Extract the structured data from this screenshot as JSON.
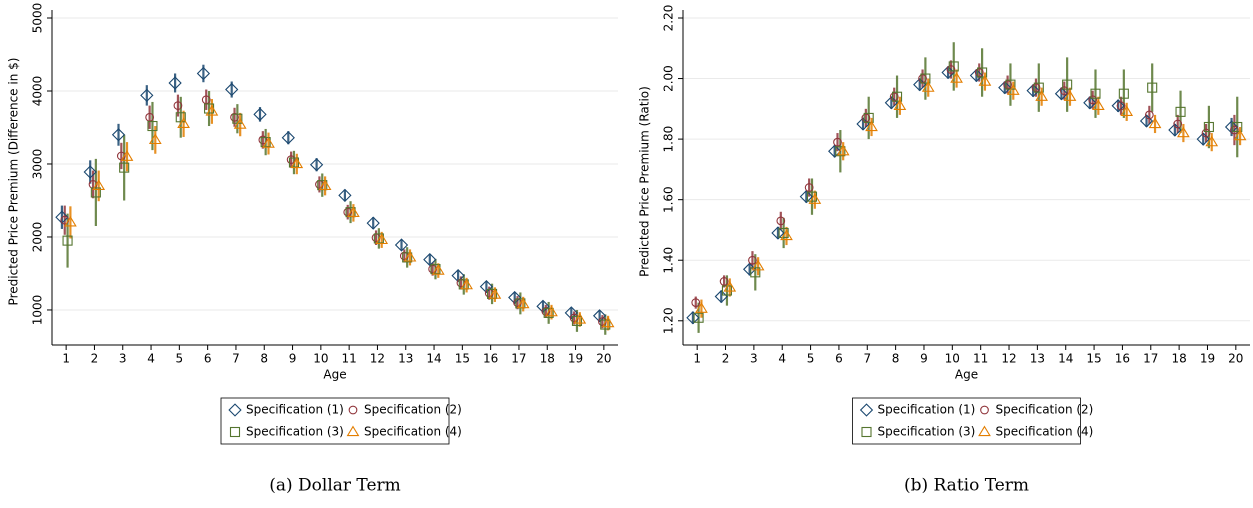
{
  "chart_data": [
    {
      "type": "scatter",
      "caption": "(a) Dollar Term",
      "x_label": "Age",
      "y_label": "Predicted Price Premium (Difference in $)",
      "x": [
        1,
        2,
        3,
        4,
        5,
        6,
        7,
        8,
        9,
        10,
        11,
        12,
        13,
        14,
        15,
        16,
        17,
        18,
        19,
        20
      ],
      "xlim": [
        0.5,
        20.5
      ],
      "xticks": [
        1,
        2,
        3,
        4,
        5,
        6,
        7,
        8,
        9,
        10,
        11,
        12,
        13,
        14,
        15,
        16,
        17,
        18,
        19,
        20
      ],
      "ylim": [
        520,
        5000
      ],
      "yticks": [
        1000,
        2000,
        3000,
        4000,
        5000
      ],
      "grid": true,
      "series": [
        {
          "name": "Specification (1)",
          "color": "#1a476f",
          "marker": "diamond",
          "values": [
            2270,
            2890,
            3400,
            3940,
            4110,
            4240,
            4020,
            3680,
            3360,
            2990,
            2570,
            2190,
            1890,
            1690,
            1470,
            1320,
            1170,
            1050,
            960,
            920
          ],
          "errors": [
            160,
            160,
            150,
            140,
            130,
            120,
            110,
            100,
            90,
            90,
            80,
            80,
            70,
            70,
            70,
            70,
            70,
            70,
            70,
            70
          ]
        },
        {
          "name": "Specification (2)",
          "color": "#90353b",
          "marker": "circle",
          "values": [
            2230,
            2720,
            3110,
            3640,
            3800,
            3880,
            3640,
            3330,
            3060,
            2720,
            2340,
            1990,
            1740,
            1560,
            1370,
            1230,
            1100,
            980,
            890,
            840
          ],
          "errors": [
            200,
            190,
            180,
            160,
            150,
            140,
            130,
            120,
            110,
            110,
            100,
            100,
            90,
            90,
            90,
            90,
            90,
            90,
            90,
            90
          ]
        },
        {
          "name": "Specification (3)",
          "color": "#55752f",
          "marker": "square",
          "values": [
            1950,
            2610,
            2950,
            3520,
            3640,
            3760,
            3620,
            3300,
            3020,
            2710,
            2340,
            1980,
            1720,
            1560,
            1350,
            1220,
            1090,
            960,
            850,
            800
          ],
          "errors": [
            370,
            460,
            450,
            330,
            280,
            240,
            200,
            180,
            160,
            160,
            150,
            140,
            140,
            140,
            140,
            140,
            150,
            150,
            150,
            140
          ]
        },
        {
          "name": "Specification (4)",
          "color": "#e37e00",
          "marker": "triangle",
          "values": [
            2200,
            2700,
            3100,
            3330,
            3550,
            3720,
            3540,
            3280,
            3000,
            2700,
            2330,
            1960,
            1720,
            1540,
            1340,
            1210,
            1080,
            970,
            870,
            820
          ],
          "errors": [
            220,
            210,
            200,
            190,
            180,
            170,
            160,
            150,
            140,
            130,
            120,
            110,
            110,
            100,
            100,
            100,
            100,
            100,
            100,
            100
          ]
        }
      ]
    },
    {
      "type": "scatter",
      "caption": "(b) Ratio Term",
      "x_label": "Age",
      "y_label": "Predicted Price Premium (Ratio)",
      "x": [
        1,
        2,
        3,
        4,
        5,
        6,
        7,
        8,
        9,
        10,
        11,
        12,
        13,
        14,
        15,
        16,
        17,
        18,
        19,
        20
      ],
      "xlim": [
        0.5,
        20.5
      ],
      "xticks": [
        1,
        2,
        3,
        4,
        5,
        6,
        7,
        8,
        9,
        10,
        11,
        12,
        13,
        14,
        15,
        16,
        17,
        18,
        19,
        20
      ],
      "ylim": [
        1.12,
        2.2
      ],
      "yticks": [
        {
          "value": 1.2,
          "label": "1.20"
        },
        {
          "value": 1.4,
          "label": "1.40"
        },
        {
          "value": 1.6,
          "label": "1.60"
        },
        {
          "value": 1.8,
          "label": "1.80"
        },
        {
          "value": 2.0,
          "label": "2.00"
        },
        {
          "value": 2.2,
          "label": "2.20"
        }
      ],
      "grid": true,
      "series": [
        {
          "name": "Specification (1)",
          "color": "#1a476f",
          "marker": "diamond",
          "values": [
            1.21,
            1.28,
            1.37,
            1.49,
            1.61,
            1.76,
            1.85,
            1.92,
            1.98,
            2.02,
            2.01,
            1.97,
            1.96,
            1.95,
            1.92,
            1.91,
            1.86,
            1.83,
            1.8,
            1.84
          ],
          "errors": [
            0.02,
            0.02,
            0.02,
            0.02,
            0.02,
            0.02,
            0.02,
            0.02,
            0.02,
            0.02,
            0.02,
            0.02,
            0.02,
            0.02,
            0.02,
            0.02,
            0.02,
            0.02,
            0.02,
            0.03
          ]
        },
        {
          "name": "Specification (2)",
          "color": "#90353b",
          "marker": "circle",
          "values": [
            1.26,
            1.33,
            1.4,
            1.53,
            1.64,
            1.79,
            1.87,
            1.94,
            2.0,
            2.03,
            2.02,
            1.98,
            1.97,
            1.96,
            1.93,
            1.91,
            1.88,
            1.85,
            1.82,
            1.83
          ],
          "errors": [
            0.02,
            0.02,
            0.03,
            0.03,
            0.03,
            0.03,
            0.03,
            0.03,
            0.03,
            0.03,
            0.03,
            0.03,
            0.03,
            0.03,
            0.03,
            0.03,
            0.03,
            0.03,
            0.03,
            0.05
          ]
        },
        {
          "name": "Specification (3)",
          "color": "#55752f",
          "marker": "square",
          "values": [
            1.21,
            1.3,
            1.36,
            1.49,
            1.61,
            1.76,
            1.87,
            1.94,
            2.0,
            2.04,
            2.02,
            1.98,
            1.97,
            1.98,
            1.95,
            1.95,
            1.97,
            1.89,
            1.84,
            1.84
          ],
          "errors": [
            0.05,
            0.05,
            0.06,
            0.05,
            0.06,
            0.07,
            0.07,
            0.07,
            0.07,
            0.08,
            0.08,
            0.07,
            0.08,
            0.09,
            0.08,
            0.08,
            0.08,
            0.07,
            0.07,
            0.1
          ]
        },
        {
          "name": "Specification (4)",
          "color": "#e37e00",
          "marker": "triangle",
          "values": [
            1.24,
            1.31,
            1.38,
            1.48,
            1.6,
            1.76,
            1.84,
            1.91,
            1.97,
            2.0,
            1.99,
            1.96,
            1.94,
            1.94,
            1.91,
            1.89,
            1.85,
            1.82,
            1.79,
            1.81
          ],
          "errors": [
            0.03,
            0.03,
            0.03,
            0.03,
            0.03,
            0.03,
            0.03,
            0.03,
            0.03,
            0.03,
            0.03,
            0.03,
            0.03,
            0.03,
            0.03,
            0.03,
            0.03,
            0.03,
            0.03,
            0.03
          ]
        }
      ]
    }
  ]
}
